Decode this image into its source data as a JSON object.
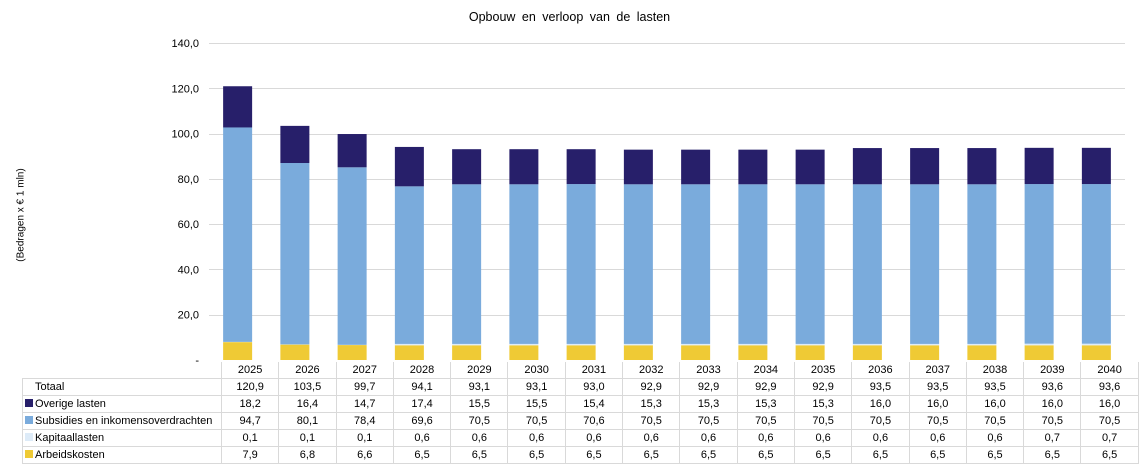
{
  "chart_data": {
    "type": "bar",
    "stacked": true,
    "title": "Opbouw  en verloop  van  de lasten",
    "xlabel": "",
    "ylabel": "(Bedragen x € 1 mln)",
    "ylim": [
      0,
      140
    ],
    "yticks": [
      "-",
      "20,0",
      "40,0",
      "60,0",
      "80,0",
      "100,0",
      "120,0",
      "140,0"
    ],
    "ytick_values": [
      0,
      20,
      40,
      60,
      80,
      100,
      120,
      140
    ],
    "grid": true,
    "legend": "data-table",
    "categories": [
      "2025",
      "2026",
      "2027",
      "2028",
      "2029",
      "2030",
      "2031",
      "2032",
      "2033",
      "2034",
      "2035",
      "2036",
      "2037",
      "2038",
      "2039",
      "2040"
    ],
    "total": {
      "name": "Totaal",
      "values": [
        "120,9",
        "103,5",
        "99,7",
        "94,1",
        "93,1",
        "93,1",
        "93,0",
        "92,9",
        "92,9",
        "92,9",
        "92,9",
        "93,5",
        "93,5",
        "93,5",
        "93,6",
        "93,6"
      ]
    },
    "series": [
      {
        "name": "Overige lasten",
        "color": "#271f6a",
        "values": [
          18.2,
          16.4,
          14.7,
          17.4,
          15.5,
          15.5,
          15.4,
          15.3,
          15.3,
          15.3,
          15.3,
          16.0,
          16.0,
          16.0,
          16.0,
          16.0
        ]
      },
      {
        "name": "Subsidies en inkomensoverdrachten",
        "color": "#7aabdc",
        "values": [
          94.7,
          80.1,
          78.4,
          69.6,
          70.5,
          70.5,
          70.6,
          70.5,
          70.5,
          70.5,
          70.5,
          70.5,
          70.5,
          70.5,
          70.5,
          70.5
        ]
      },
      {
        "name": "Kapitaallasten",
        "color": "#ddebf8",
        "values": [
          0.1,
          0.1,
          0.1,
          0.6,
          0.6,
          0.6,
          0.6,
          0.6,
          0.6,
          0.6,
          0.6,
          0.6,
          0.6,
          0.6,
          0.7,
          0.7
        ]
      },
      {
        "name": "Arbeidskosten",
        "color": "#efca35",
        "values": [
          7.9,
          6.8,
          6.6,
          6.5,
          6.5,
          6.5,
          6.5,
          6.5,
          6.5,
          6.5,
          6.5,
          6.5,
          6.5,
          6.5,
          6.5,
          6.5
        ]
      }
    ],
    "stack_order_bottom_to_top": [
      "Arbeidskosten",
      "Kapitaallasten",
      "Subsidies en inkomensoverdrachten",
      "Overige lasten"
    ]
  },
  "colors": {
    "gridline": "#d9d9d9",
    "table_border": "#d9d9d9"
  }
}
